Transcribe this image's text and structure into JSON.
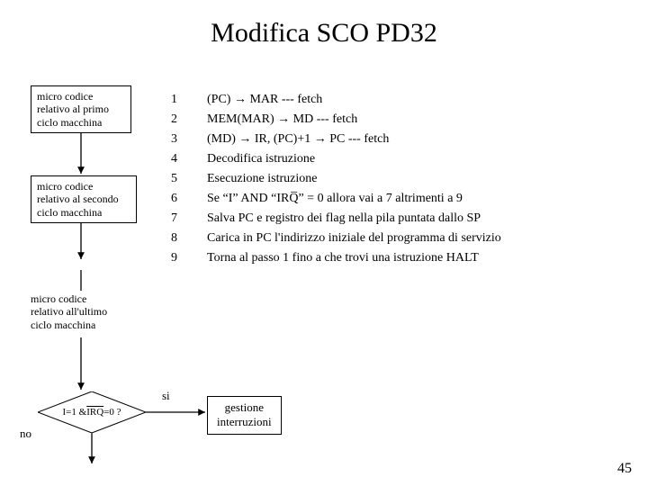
{
  "title": "Modifica SCO PD32",
  "boxes": {
    "primo": "micro codice\nrelativo al primo\nciclo macchina",
    "secondo": "micro codice\nrelativo al secondo\nciclo macchina",
    "ultimo": "micro codice\nrelativo all'ultimo\nciclo macchina"
  },
  "steps": [
    {
      "n": "1",
      "t": "(PC) → MAR                                         --- fetch"
    },
    {
      "n": "2",
      "t": "MEM(MAR) → MD                               --- fetch"
    },
    {
      "n": "3",
      "t": "(MD) → IR, (PC)+1 → PC                      --- fetch"
    },
    {
      "n": "4",
      "t": "Decodifica istruzione"
    },
    {
      "n": "5",
      "t": "Esecuzione istruzione"
    },
    {
      "n": "6",
      "t": "Se “I” AND “IRQ̅” = 0 allora vai a 7 altrimenti a 9"
    },
    {
      "n": "7",
      "t": "Salva PC e registro dei flag nella pila puntata dallo SP"
    },
    {
      "n": "8",
      "t": "Carica in PC l'indirizzo iniziale del programma di servizio"
    },
    {
      "n": "9",
      "t": "Torna al passo 1 fino a che trovi una istruzione HALT"
    }
  ],
  "decision": {
    "text_pre": "I=1 & ",
    "text_irq": "IRQ",
    "text_post": "=0 ?",
    "yes": "si",
    "no": "no"
  },
  "interrupt_box": "gestione\ninterruzioni",
  "page": "45",
  "style": {
    "bg": "#ffffff",
    "stroke": "#000000",
    "title_size": 30,
    "box_font": 12,
    "step_font": 14,
    "arrow_head": 6
  }
}
